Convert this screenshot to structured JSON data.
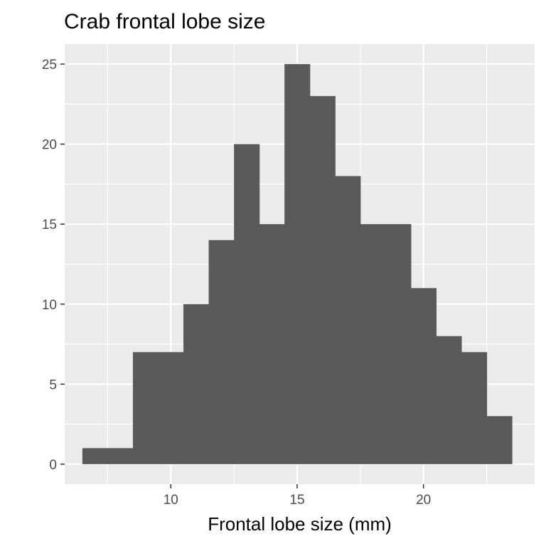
{
  "chart_data": {
    "type": "bar",
    "title": "Crab frontal lobe size",
    "xlabel": "Frontal lobe size (mm)",
    "ylabel": "",
    "x_ticks": [
      10,
      15,
      20
    ],
    "y_ticks": [
      0,
      5,
      10,
      15,
      20,
      25
    ],
    "xlim": [
      5.8,
      24.4
    ],
    "ylim": [
      -1.25,
      26.25
    ],
    "bin_width": 1,
    "bins": [
      {
        "center": 7,
        "count": 1
      },
      {
        "center": 8,
        "count": 1
      },
      {
        "center": 9,
        "count": 7
      },
      {
        "center": 10,
        "count": 7
      },
      {
        "center": 11,
        "count": 10
      },
      {
        "center": 12,
        "count": 14
      },
      {
        "center": 13,
        "count": 20
      },
      {
        "center": 14,
        "count": 15
      },
      {
        "center": 15,
        "count": 25
      },
      {
        "center": 16,
        "count": 23
      },
      {
        "center": 17,
        "count": 18
      },
      {
        "center": 18,
        "count": 15
      },
      {
        "center": 19,
        "count": 15
      },
      {
        "center": 20,
        "count": 11
      },
      {
        "center": 21,
        "count": 8
      },
      {
        "center": 22,
        "count": 7
      },
      {
        "center": 23,
        "count": 3
      }
    ],
    "grid": true,
    "colors": {
      "panel": "#ebebeb",
      "grid": "#ffffff",
      "bar": "#595959",
      "tick": "#333333"
    }
  }
}
